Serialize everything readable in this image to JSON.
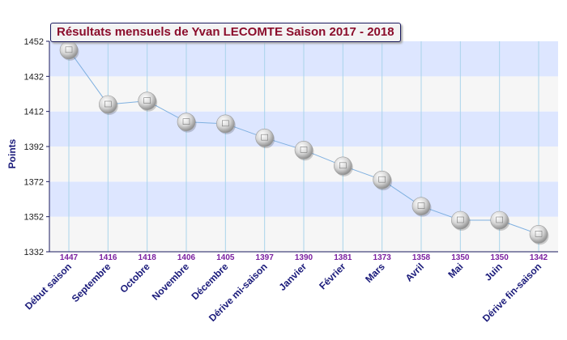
{
  "chart_data": {
    "type": "line",
    "title": "Résultats mensuels de Yvan LECOMTE Saison 2017 - 2018",
    "ylabel": "Points",
    "xlabel": "",
    "categories": [
      "Début saison",
      "Septembre",
      "Octobre",
      "Novembre",
      "Décembre",
      "Dérive mi-saison",
      "Janvier",
      "Février",
      "Mars",
      "Avril",
      "Mai",
      "Juin",
      "Dérive fin-saison"
    ],
    "values": [
      1447,
      1416,
      1418,
      1406,
      1405,
      1397,
      1390,
      1381,
      1373,
      1358,
      1350,
      1350,
      1342
    ],
    "y_ticks": [
      1332,
      1352,
      1372,
      1392,
      1412,
      1432,
      1452
    ],
    "ylim": [
      1332,
      1452
    ],
    "grid": true,
    "legend": "none",
    "colors": {
      "band_blue": "#dde6ff",
      "band_gray": "#f6f6f6",
      "line": "#7fb0e0",
      "value_label": "#7a1fa0",
      "category_label": "#1a1a7a",
      "title": "#8b0d2b",
      "axis": "#1a1a5e"
    }
  }
}
